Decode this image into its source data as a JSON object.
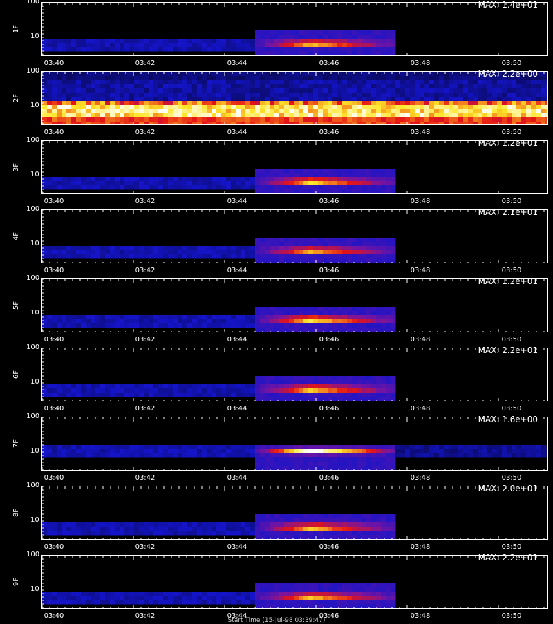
{
  "chart_data": [
    {
      "type": "heatmap",
      "ylabel": "1F",
      "max_label": "MAX: 1.4e+01",
      "yticks": [
        "100",
        "10"
      ],
      "xticks": [
        "03:40",
        "03:42",
        "03:44",
        "03:46",
        "03:48",
        "03:50"
      ],
      "mode": "burst",
      "intensity": 0.9
    },
    {
      "type": "heatmap",
      "ylabel": "2F",
      "max_label": "MAX: 2.2e+00",
      "yticks": [
        "100",
        "10"
      ],
      "xticks": [
        "03:40",
        "03:42",
        "03:44",
        "03:46",
        "03:48",
        "03:50"
      ],
      "mode": "band",
      "intensity": 1.0
    },
    {
      "type": "heatmap",
      "ylabel": "3F",
      "max_label": "MAX: 1.2e+01",
      "yticks": [
        "100",
        "10"
      ],
      "xticks": [
        "03:40",
        "03:42",
        "03:44",
        "03:46",
        "03:48",
        "03:50"
      ],
      "mode": "burst",
      "intensity": 0.95
    },
    {
      "type": "heatmap",
      "ylabel": "4F",
      "max_label": "MAX: 2.1e+01",
      "yticks": [
        "100",
        "10"
      ],
      "xticks": [
        "03:40",
        "03:42",
        "03:44",
        "03:46",
        "03:48",
        "03:50"
      ],
      "mode": "burst",
      "intensity": 0.85
    },
    {
      "type": "heatmap",
      "ylabel": "5F",
      "max_label": "MAX: 1.2e+01",
      "yticks": [
        "100",
        "10"
      ],
      "xticks": [
        "03:40",
        "03:42",
        "03:44",
        "03:46",
        "03:48",
        "03:50"
      ],
      "mode": "burst",
      "intensity": 1.0
    },
    {
      "type": "heatmap",
      "ylabel": "6F",
      "max_label": "MAX: 2.2e+01",
      "yticks": [
        "100",
        "10"
      ],
      "xticks": [
        "03:40",
        "03:42",
        "03:44",
        "03:46",
        "03:48",
        "03:50"
      ],
      "mode": "burst",
      "intensity": 0.9
    },
    {
      "type": "heatmap",
      "ylabel": "7F",
      "max_label": "MAX: 1.6e+00",
      "yticks": [
        "100",
        "10"
      ],
      "xticks": [
        "03:40",
        "03:42",
        "03:44",
        "03:46",
        "03:48",
        "03:50"
      ],
      "mode": "burst7",
      "intensity": 1.0
    },
    {
      "type": "heatmap",
      "ylabel": "8F",
      "max_label": "MAX: 2.0e+01",
      "yticks": [
        "100",
        "10"
      ],
      "xticks": [
        "03:40",
        "03:42",
        "03:44",
        "03:46",
        "03:48",
        "03:50"
      ],
      "mode": "burst",
      "intensity": 0.9
    },
    {
      "type": "heatmap",
      "ylabel": "9F",
      "max_label": "MAX: 2.2e+01",
      "yticks": [
        "100",
        "10"
      ],
      "xticks": [
        "03:40",
        "03:42",
        "03:44",
        "03:46",
        "03:48",
        "03:50"
      ],
      "mode": "burst",
      "intensity": 0.9
    }
  ],
  "footer": "Start Time (15-Jul-98 03:39:47)"
}
